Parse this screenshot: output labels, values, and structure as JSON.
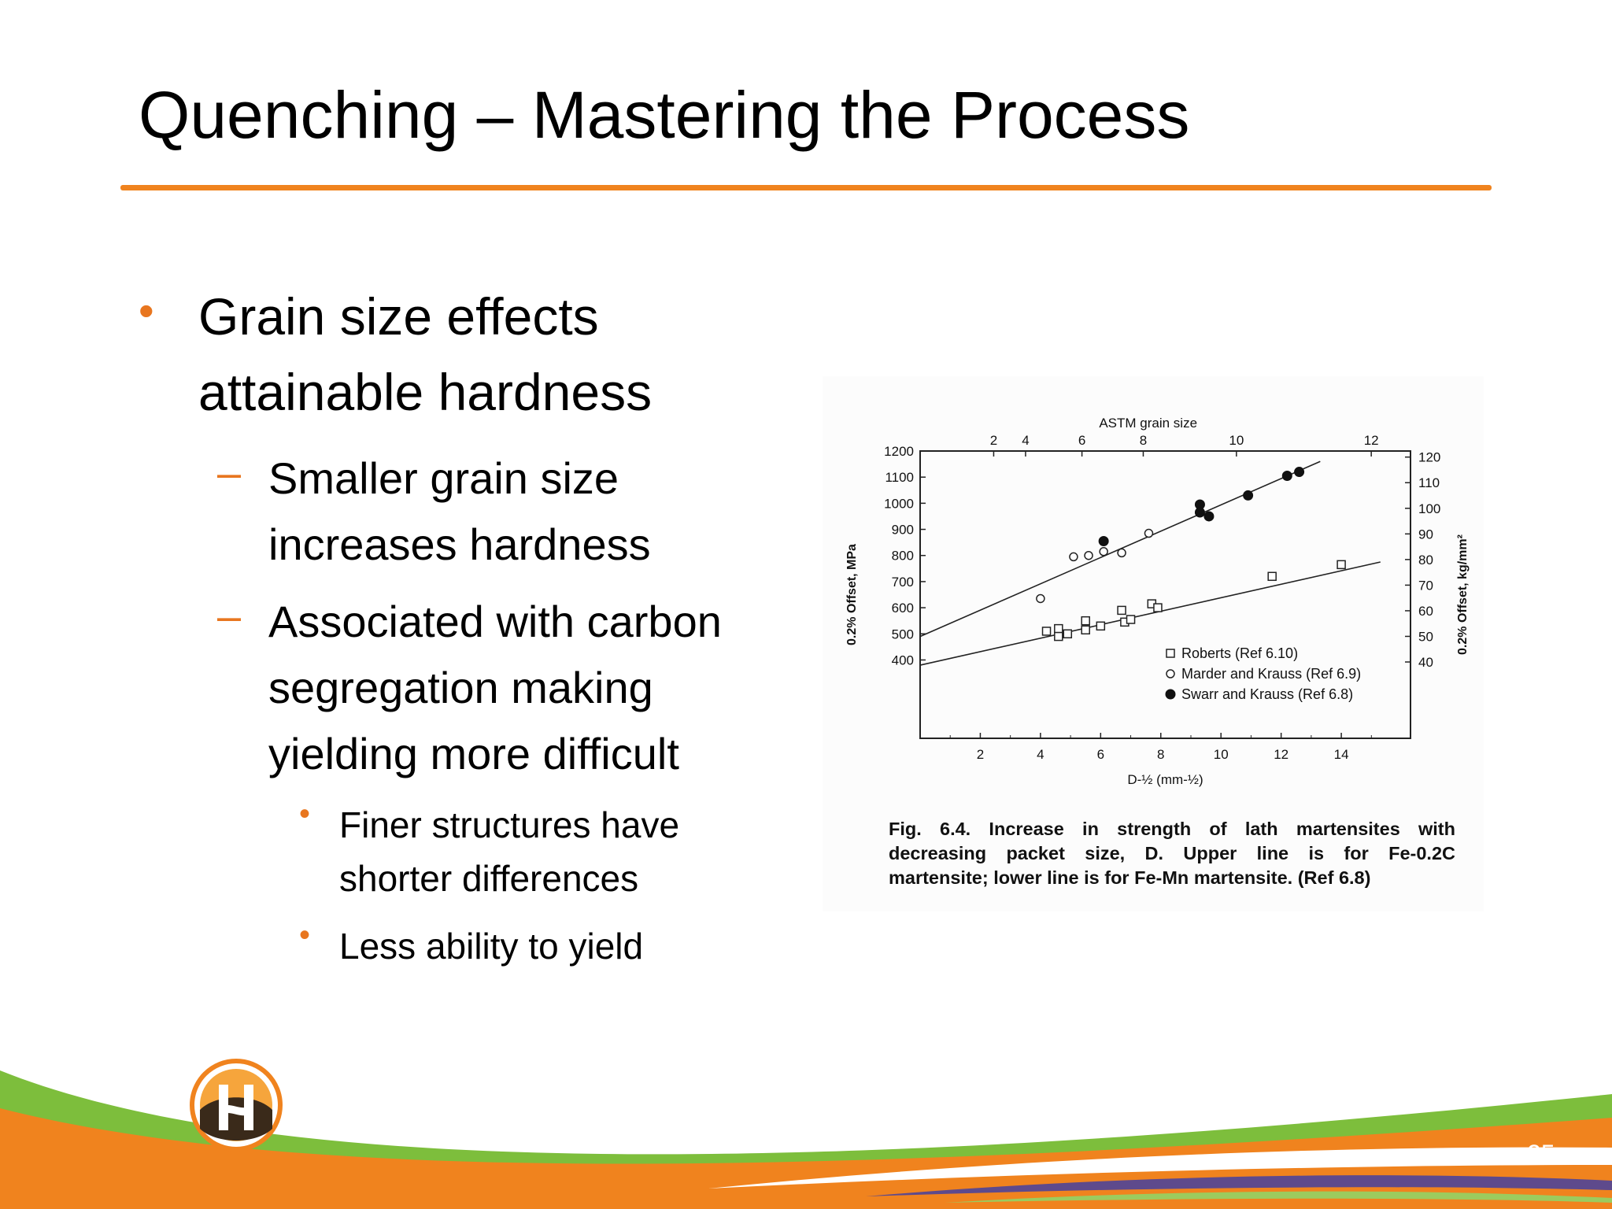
{
  "slide": {
    "title": "Quenching – Mastering the Process",
    "page_number": "25",
    "accent_color": "#F0831E",
    "bullets": [
      {
        "level": 1,
        "lines": [
          "Grain size effects",
          "attainable hardness"
        ]
      },
      {
        "level": 2,
        "lines": [
          "Smaller grain size",
          "increases hardness"
        ]
      },
      {
        "level": 2,
        "lines": [
          "Associated with carbon",
          "segregation making",
          "yielding more difficult"
        ]
      },
      {
        "level": 3,
        "lines": [
          "Finer structures have",
          "shorter differences"
        ]
      },
      {
        "level": 3,
        "lines": [
          "Less ability to yield"
        ]
      }
    ],
    "markers": {
      "level1": "•",
      "level2": "–",
      "level3": "•"
    },
    "logo_icon": "h-letter-logo-icon"
  },
  "chart_data": {
    "type": "scatter",
    "title": "",
    "top_axis_label": "ASTM grain size",
    "top_ticks": [
      2,
      4,
      6,
      8,
      10,
      12
    ],
    "xlabel": "D-½ (mm-½)",
    "xlim": [
      0,
      16.3
    ],
    "xticks": [
      2,
      4,
      6,
      8,
      10,
      12,
      14
    ],
    "ylabel_left": "0.2% Offset, MPa",
    "ylim_left": [
      100,
      1200
    ],
    "yticks_left": [
      400,
      500,
      600,
      700,
      800,
      900,
      1000,
      1100,
      1200
    ],
    "ylabel_right": "0.2% Offset, kg/mm²",
    "yticks_right": [
      40,
      50,
      60,
      70,
      80,
      90,
      100,
      110,
      120
    ],
    "grid": false,
    "legend_position": "bottom-right",
    "series": [
      {
        "name": "Roberts (Ref 6.10)",
        "marker": "open-square",
        "points": [
          [
            4.2,
            510
          ],
          [
            4.6,
            520
          ],
          [
            4.6,
            490
          ],
          [
            4.9,
            500
          ],
          [
            5.5,
            550
          ],
          [
            5.5,
            515
          ],
          [
            6.0,
            530
          ],
          [
            6.7,
            590
          ],
          [
            6.8,
            545
          ],
          [
            7.0,
            555
          ],
          [
            7.7,
            615
          ],
          [
            7.9,
            600
          ],
          [
            11.7,
            720
          ],
          [
            14.0,
            765
          ]
        ]
      },
      {
        "name": "Marder and Krauss (Ref 6.9)",
        "marker": "open-circle",
        "points": [
          [
            4.0,
            635
          ],
          [
            5.1,
            795
          ],
          [
            5.6,
            800
          ],
          [
            6.1,
            815
          ],
          [
            6.7,
            810
          ],
          [
            7.6,
            885
          ]
        ]
      },
      {
        "name": "Swarr and Krauss (Ref 6.8)",
        "marker": "filled-circle",
        "points": [
          [
            6.1,
            855
          ],
          [
            9.3,
            995
          ],
          [
            9.3,
            965
          ],
          [
            9.6,
            950
          ],
          [
            10.9,
            1030
          ],
          [
            12.2,
            1105
          ],
          [
            12.6,
            1120
          ]
        ]
      }
    ],
    "fit_lines": [
      {
        "from": [
          0,
          490
        ],
        "to": [
          13.3,
          1160
        ]
      },
      {
        "from": [
          0,
          380
        ],
        "to": [
          15.3,
          775
        ]
      }
    ],
    "caption_lines": [
      "Fig. 6.4. Increase in strength of lath martensites with",
      "decreasing packet size, D. Upper line is for Fe-0.2C",
      "martensite; lower line is for Fe-Mn martensite. (Ref 6.8)"
    ]
  }
}
